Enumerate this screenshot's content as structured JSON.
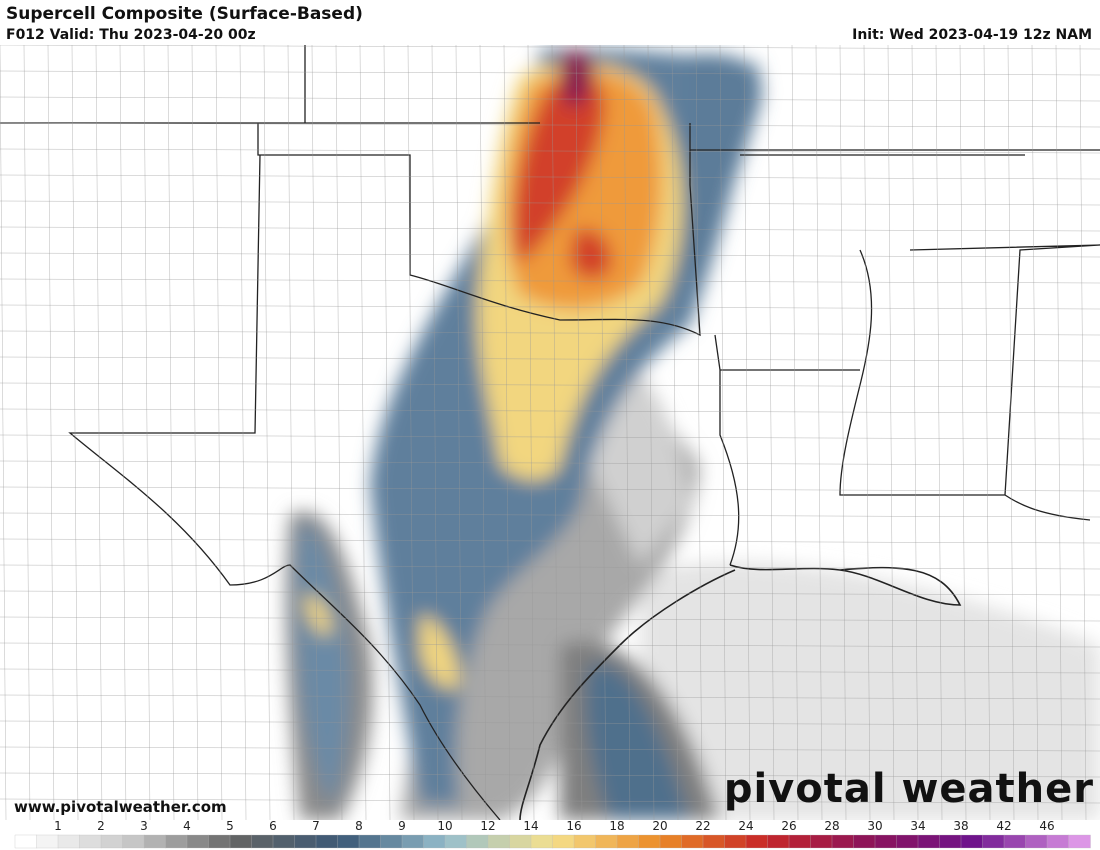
{
  "header": {
    "title": "Supercell Composite (Surface-Based)",
    "valid": "F012 Valid: Thu 2023-04-20 00z",
    "init": "Init: Wed 2023-04-19 12z NAM"
  },
  "legend": {
    "labels": [
      "1",
      "2",
      "3",
      "4",
      "5",
      "6",
      "7",
      "8",
      "9",
      "10",
      "12",
      "14",
      "16",
      "18",
      "20",
      "22",
      "24",
      "26",
      "28",
      "30",
      "34",
      "38",
      "42",
      "46"
    ]
  },
  "branding": {
    "url": "www.pivotalweather.com",
    "logo": "pivotal weather"
  }
}
